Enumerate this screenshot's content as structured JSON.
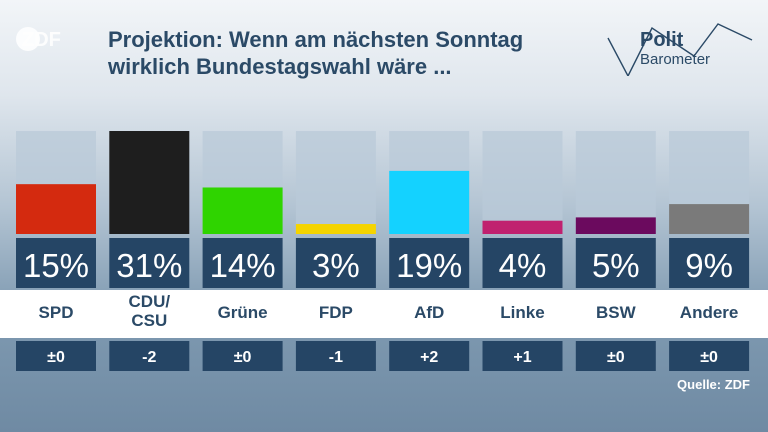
{
  "header": {
    "logo_text": "ZDF",
    "title_line1": "Projektion: Wenn am nächsten Sonntag",
    "title_line2": "wirklich Bundestagswahl wäre ...",
    "brand_line1": "Polit",
    "brand_line2": "Barometer"
  },
  "chart_data": {
    "type": "bar",
    "title": "Projektion: Wenn am nächsten Sonntag wirklich Bundestagswahl wäre ...",
    "categories": [
      "SPD",
      "CDU/\nCSU",
      "Grüne",
      "FDP",
      "AfD",
      "Linke",
      "BSW",
      "Andere"
    ],
    "values": [
      15,
      31,
      14,
      3,
      19,
      4,
      5,
      9
    ],
    "value_labels": [
      "15%",
      "31%",
      "14%",
      "3%",
      "19%",
      "4%",
      "5%",
      "9%"
    ],
    "changes": [
      "±0",
      "-2",
      "±0",
      "-1",
      "+2",
      "+1",
      "±0",
      "±0"
    ],
    "colors": [
      "#d42a0f",
      "#1e1e1e",
      "#2fd400",
      "#f5d400",
      "#14d2ff",
      "#c0216f",
      "#6b0a5e",
      "#7a7a7a"
    ],
    "ylim": [
      0,
      31
    ],
    "unit": "%",
    "grid": false,
    "legend": "none"
  },
  "footer": {
    "source": "Quelle: ZDF"
  }
}
